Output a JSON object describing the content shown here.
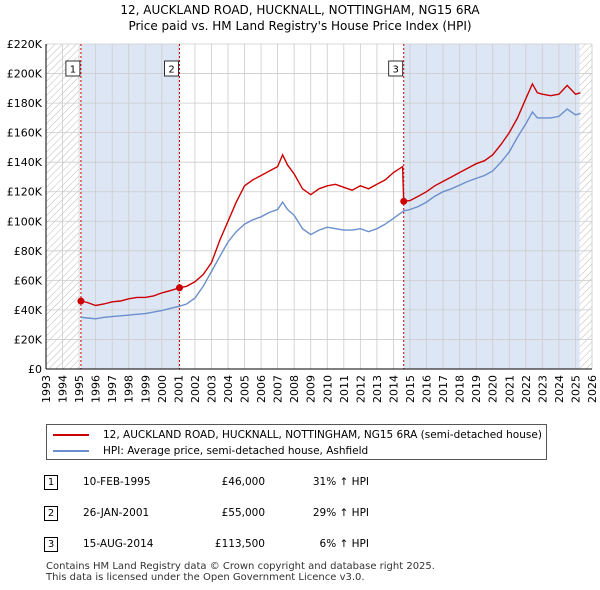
{
  "title": "12, AUCKLAND ROAD, HUCKNALL, NOTTINGHAM, NG15 6RA",
  "subtitle": "Price paid vs. HM Land Registry's House Price Index (HPI)",
  "colors": {
    "property": "#cc0000",
    "hpi": "#6a8fcc",
    "shade": "#dde6f5",
    "grid": "#cccccc"
  },
  "chart_data": {
    "type": "line",
    "title": "12, AUCKLAND ROAD, HUCKNALL, NOTTINGHAM, NG15 6RA",
    "subtitle": "Price paid vs. HM Land Registry's House Price Index (HPI)",
    "xlim": [
      1993,
      2026
    ],
    "ylim": [
      0,
      220000
    ],
    "x_ticks": [
      1993,
      1994,
      1995,
      1996,
      1997,
      1998,
      1999,
      2000,
      2001,
      2002,
      2003,
      2004,
      2005,
      2006,
      2007,
      2008,
      2009,
      2010,
      2011,
      2012,
      2013,
      2014,
      2015,
      2016,
      2017,
      2018,
      2019,
      2020,
      2021,
      2022,
      2023,
      2024,
      2025,
      2026
    ],
    "y_ticks": [
      {
        "value": 0,
        "label": "£0"
      },
      {
        "value": 20000,
        "label": "£20K"
      },
      {
        "value": 40000,
        "label": "£40K"
      },
      {
        "value": 60000,
        "label": "£60K"
      },
      {
        "value": 80000,
        "label": "£80K"
      },
      {
        "value": 100000,
        "label": "£100K"
      },
      {
        "value": 120000,
        "label": "£120K"
      },
      {
        "value": 140000,
        "label": "£140K"
      },
      {
        "value": 160000,
        "label": "£160K"
      },
      {
        "value": 180000,
        "label": "£180K"
      },
      {
        "value": 200000,
        "label": "£200K"
      },
      {
        "value": 220000,
        "label": "£220K"
      }
    ],
    "series": [
      {
        "name": "12, AUCKLAND ROAD, HUCKNALL, NOTTINGHAM, NG15 6RA (semi-detached house)",
        "color": "#cc0000",
        "points": [
          [
            1995.1,
            46000
          ],
          [
            1995.5,
            45000
          ],
          [
            1996,
            43000
          ],
          [
            1996.5,
            44000
          ],
          [
            1997,
            45500
          ],
          [
            1997.5,
            46000
          ],
          [
            1998,
            47500
          ],
          [
            1998.5,
            48500
          ],
          [
            1999,
            48500
          ],
          [
            1999.5,
            49500
          ],
          [
            2000,
            51500
          ],
          [
            2000.5,
            53000
          ],
          [
            2001.07,
            55000
          ],
          [
            2001.5,
            56000
          ],
          [
            2002,
            59000
          ],
          [
            2002.5,
            64000
          ],
          [
            2003,
            72000
          ],
          [
            2003.5,
            87000
          ],
          [
            2004,
            100000
          ],
          [
            2004.5,
            113000
          ],
          [
            2005,
            124000
          ],
          [
            2005.5,
            128000
          ],
          [
            2006,
            131000
          ],
          [
            2006.5,
            134000
          ],
          [
            2007,
            137000
          ],
          [
            2007.3,
            145000
          ],
          [
            2007.6,
            138000
          ],
          [
            2008,
            132000
          ],
          [
            2008.5,
            122000
          ],
          [
            2009,
            118000
          ],
          [
            2009.5,
            122000
          ],
          [
            2010,
            124000
          ],
          [
            2010.5,
            125000
          ],
          [
            2011,
            123000
          ],
          [
            2011.5,
            121000
          ],
          [
            2012,
            124000
          ],
          [
            2012.5,
            122000
          ],
          [
            2013,
            125000
          ],
          [
            2013.5,
            128000
          ],
          [
            2014,
            133000
          ],
          [
            2014.55,
            137000
          ],
          [
            2014.62,
            113500
          ],
          [
            2015,
            114000
          ],
          [
            2015.5,
            117000
          ],
          [
            2016,
            120000
          ],
          [
            2016.5,
            124000
          ],
          [
            2017,
            127000
          ],
          [
            2017.5,
            130000
          ],
          [
            2018,
            133000
          ],
          [
            2018.5,
            136000
          ],
          [
            2019,
            139000
          ],
          [
            2019.5,
            141000
          ],
          [
            2020,
            145000
          ],
          [
            2020.5,
            152000
          ],
          [
            2021,
            160000
          ],
          [
            2021.5,
            170000
          ],
          [
            2022,
            183000
          ],
          [
            2022.4,
            193000
          ],
          [
            2022.7,
            187000
          ],
          [
            2023,
            186000
          ],
          [
            2023.5,
            185000
          ],
          [
            2024,
            186000
          ],
          [
            2024.5,
            192000
          ],
          [
            2025,
            186000
          ],
          [
            2025.3,
            187000
          ]
        ]
      },
      {
        "name": "HPI: Average price, semi-detached house, Ashfield",
        "color": "#6a8fcc",
        "points": [
          [
            1995.1,
            35000
          ],
          [
            1995.5,
            34500
          ],
          [
            1996,
            34000
          ],
          [
            1996.5,
            35000
          ],
          [
            1997,
            35500
          ],
          [
            1997.5,
            36000
          ],
          [
            1998,
            36500
          ],
          [
            1998.5,
            37000
          ],
          [
            1999,
            37500
          ],
          [
            1999.5,
            38500
          ],
          [
            2000,
            39500
          ],
          [
            2000.5,
            41000
          ],
          [
            2001.07,
            42500
          ],
          [
            2001.5,
            44000
          ],
          [
            2002,
            48000
          ],
          [
            2002.5,
            56000
          ],
          [
            2003,
            66000
          ],
          [
            2003.5,
            76000
          ],
          [
            2004,
            86000
          ],
          [
            2004.5,
            93000
          ],
          [
            2005,
            98000
          ],
          [
            2005.5,
            101000
          ],
          [
            2006,
            103000
          ],
          [
            2006.5,
            106000
          ],
          [
            2007,
            108000
          ],
          [
            2007.3,
            113000
          ],
          [
            2007.6,
            108000
          ],
          [
            2008,
            104000
          ],
          [
            2008.5,
            95000
          ],
          [
            2009,
            91000
          ],
          [
            2009.5,
            94000
          ],
          [
            2010,
            96000
          ],
          [
            2010.5,
            95000
          ],
          [
            2011,
            94000
          ],
          [
            2011.5,
            94000
          ],
          [
            2012,
            95000
          ],
          [
            2012.5,
            93000
          ],
          [
            2013,
            95000
          ],
          [
            2013.5,
            98000
          ],
          [
            2014,
            102000
          ],
          [
            2014.62,
            107000
          ],
          [
            2015,
            108000
          ],
          [
            2015.5,
            110000
          ],
          [
            2016,
            113000
          ],
          [
            2016.5,
            117000
          ],
          [
            2017,
            120000
          ],
          [
            2017.5,
            122000
          ],
          [
            2018,
            124500
          ],
          [
            2018.5,
            127000
          ],
          [
            2019,
            129000
          ],
          [
            2019.5,
            131000
          ],
          [
            2020,
            134000
          ],
          [
            2020.5,
            140000
          ],
          [
            2021,
            147000
          ],
          [
            2021.5,
            157000
          ],
          [
            2022,
            166000
          ],
          [
            2022.4,
            174000
          ],
          [
            2022.7,
            170000
          ],
          [
            2023,
            170000
          ],
          [
            2023.5,
            170000
          ],
          [
            2024,
            171000
          ],
          [
            2024.5,
            176000
          ],
          [
            2025,
            172000
          ],
          [
            2025.3,
            173000
          ]
        ]
      }
    ],
    "sales": [
      {
        "id": "1",
        "x": 1995.11,
        "y": 46000
      },
      {
        "id": "2",
        "x": 2001.07,
        "y": 55000
      },
      {
        "id": "3",
        "x": 2014.62,
        "y": 113500
      }
    ],
    "shaded_regions": [
      [
        1995.11,
        2001.07
      ],
      [
        2014.62,
        2025.25
      ]
    ],
    "hatched_regions": [
      [
        1993,
        1995
      ],
      [
        2025.25,
        2026
      ]
    ]
  },
  "legend": {
    "items": [
      {
        "label": "12, AUCKLAND ROAD, HUCKNALL, NOTTINGHAM, NG15 6RA (semi-detached house)"
      },
      {
        "label": "HPI: Average price, semi-detached house, Ashfield"
      }
    ]
  },
  "transactions": [
    {
      "num": "1",
      "date": "10-FEB-1995",
      "price": "£46,000",
      "hpi": "31% ↑ HPI"
    },
    {
      "num": "2",
      "date": "26-JAN-2001",
      "price": "£55,000",
      "hpi": "29% ↑ HPI"
    },
    {
      "num": "3",
      "date": "15-AUG-2014",
      "price": "£113,500",
      "hpi": "6% ↑ HPI"
    }
  ],
  "footer": {
    "line1": "Contains HM Land Registry data © Crown copyright and database right 2025.",
    "line2": "This data is licensed under the Open Government Licence v3.0."
  }
}
